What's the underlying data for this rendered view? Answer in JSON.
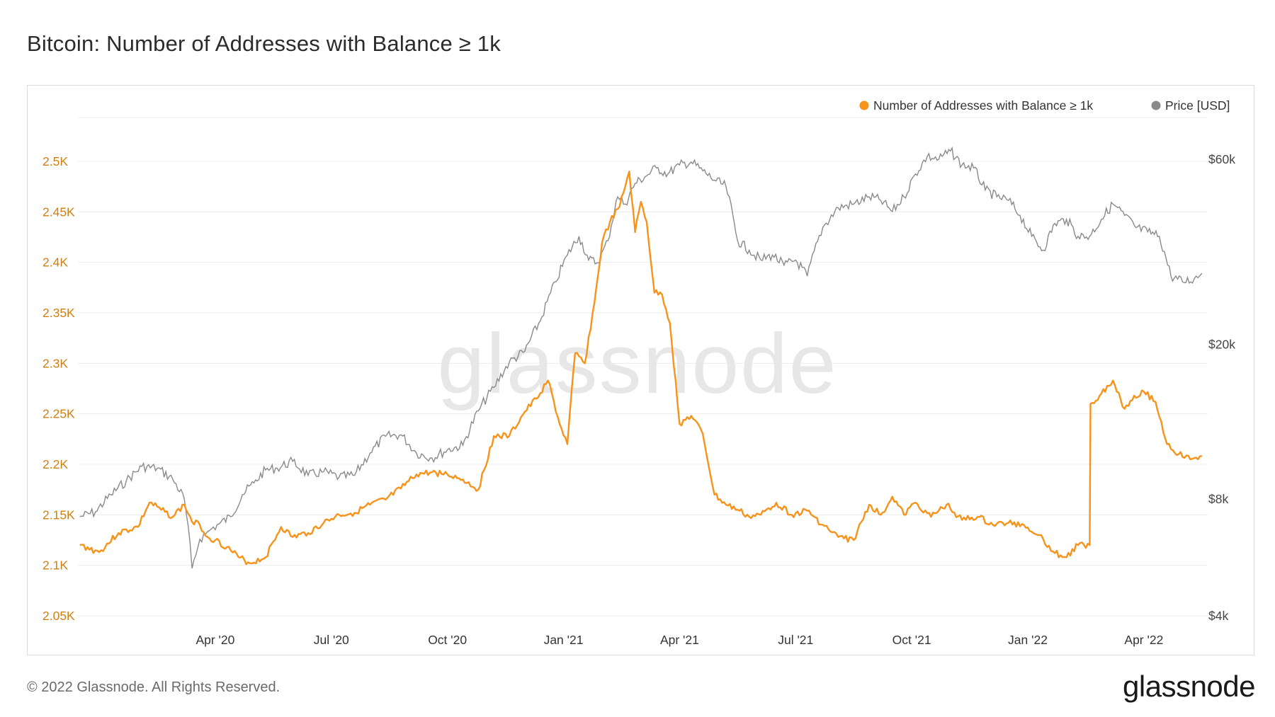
{
  "header": {
    "title": "Bitcoin: Number of Addresses with Balance ≥ 1k"
  },
  "footer": {
    "copyright": "© 2022 Glassnode. All Rights Reserved.",
    "logo": "glassnode"
  },
  "watermark": "glassnode",
  "colors": {
    "addresses": "#f7931a",
    "price": "#8a8a8a",
    "grid": "#ececec",
    "leftAxis": "#d17f12",
    "rightAxis": "#444444"
  },
  "chart_data": {
    "type": "line",
    "title": "Bitcoin: Number of Addresses with Balance ≥ 1k",
    "legend_position": "top-right",
    "x_tick_labels": [
      "Apr '20",
      "Jul '20",
      "Oct '20",
      "Jan '21",
      "Apr '21",
      "Jul '21",
      "Oct '21",
      "Jan '22",
      "Apr '22"
    ],
    "x_tick_months": [
      3,
      6,
      9,
      12,
      15,
      18,
      21,
      24,
      27
    ],
    "x_range_months": [
      -0.55,
      28.65
    ],
    "left_axis": {
      "label": "Number of Addresses with Balance ≥ 1k",
      "range": [
        2030,
        2545
      ],
      "ticks": [
        2050,
        2100,
        2150,
        2200,
        2250,
        2300,
        2350,
        2400,
        2450,
        2500
      ],
      "tick_labels": [
        "2.05K",
        "2.1K",
        "2.15K",
        "2.2K",
        "2.25K",
        "2.3K",
        "2.35K",
        "2.4K",
        "2.45K",
        "2.5K"
      ]
    },
    "right_axis": {
      "label": "Price [USD]",
      "scale": "log",
      "ticks": [
        4000,
        8000,
        20000,
        60000
      ],
      "tick_labels": [
        "$4k",
        "$8k",
        "$20k",
        "$60k"
      ]
    },
    "series": [
      {
        "name": "Number of Addresses with Balance ≥ 1k",
        "axis": "left",
        "x_months": [
          -0.5,
          0,
          0.5,
          1,
          1.3,
          1.6,
          1.9,
          2.2,
          2.4,
          2.6,
          2.8,
          3.0,
          3.3,
          3.6,
          3.9,
          4.3,
          4.7,
          5.0,
          5.4,
          5.8,
          6.2,
          6.6,
          7.0,
          7.4,
          7.8,
          8.2,
          8.6,
          9.0,
          9.4,
          9.8,
          10.2,
          10.6,
          11.0,
          11.3,
          11.6,
          11.9,
          12.1,
          12.3,
          12.55,
          12.8,
          13.0,
          13.2,
          13.45,
          13.7,
          13.85,
          14.0,
          14.15,
          14.35,
          14.55,
          14.75,
          15.0,
          15.3,
          15.6,
          15.9,
          16.2,
          16.5,
          16.8,
          17.1,
          17.5,
          17.9,
          18.3,
          18.7,
          19.1,
          19.5,
          19.9,
          20.2,
          20.5,
          20.8,
          21.1,
          21.5,
          21.9,
          22.3,
          22.7,
          23.1,
          23.5,
          23.9,
          24.3,
          24.7,
          25.0,
          25.3,
          25.6,
          25.62,
          25.9,
          26.2,
          26.5,
          26.75,
          27.0,
          27.3,
          27.6,
          27.9,
          28.2,
          28.5
        ],
        "values": [
          2120,
          2113,
          2132,
          2138,
          2162,
          2155,
          2148,
          2160,
          2143,
          2140,
          2128,
          2125,
          2118,
          2108,
          2102,
          2108,
          2138,
          2128,
          2132,
          2142,
          2150,
          2152,
          2160,
          2165,
          2176,
          2190,
          2192,
          2190,
          2185,
          2175,
          2228,
          2228,
          2252,
          2265,
          2283,
          2240,
          2220,
          2310,
          2300,
          2360,
          2420,
          2440,
          2455,
          2490,
          2430,
          2460,
          2440,
          2370,
          2368,
          2340,
          2240,
          2248,
          2230,
          2170,
          2160,
          2155,
          2148,
          2150,
          2162,
          2150,
          2154,
          2140,
          2128,
          2125,
          2160,
          2150,
          2168,
          2150,
          2162,
          2148,
          2160,
          2145,
          2148,
          2140,
          2142,
          2140,
          2130,
          2112,
          2108,
          2120,
          2120,
          2260,
          2270,
          2283,
          2255,
          2268,
          2272,
          2262,
          2220,
          2210,
          2205,
          2208
        ]
      },
      {
        "name": "Price [USD]",
        "axis": "right",
        "x_months": [
          -0.5,
          -0.1,
          0.3,
          0.7,
          1.1,
          1.5,
          1.9,
          2.2,
          2.4,
          2.6,
          2.75,
          2.9,
          3.1,
          3.4,
          3.7,
          4.0,
          4.3,
          4.6,
          5.0,
          5.4,
          5.8,
          6.2,
          6.6,
          7.0,
          7.4,
          7.8,
          8.2,
          8.6,
          9.0,
          9.4,
          9.8,
          10.2,
          10.6,
          11.0,
          11.4,
          11.8,
          12.1,
          12.4,
          12.65,
          12.9,
          13.15,
          13.4,
          13.6,
          13.85,
          14.1,
          14.4,
          14.7,
          15.0,
          15.3,
          15.6,
          15.9,
          16.2,
          16.5,
          16.8,
          17.1,
          17.4,
          17.7,
          18.0,
          18.3,
          18.7,
          19.1,
          19.5,
          19.9,
          20.2,
          20.5,
          20.8,
          21.1,
          21.4,
          21.7,
          22.0,
          22.3,
          22.6,
          22.9,
          23.2,
          23.5,
          23.8,
          24.1,
          24.4,
          24.7,
          25.0,
          25.3,
          25.6,
          25.9,
          26.2,
          26.5,
          26.8,
          27.1,
          27.4,
          27.7,
          28.0,
          28.3,
          28.5
        ],
        "values": [
          7200,
          7400,
          8200,
          8900,
          9700,
          9600,
          9000,
          8000,
          5300,
          6300,
          6500,
          6700,
          6900,
          7200,
          8200,
          8800,
          9500,
          9600,
          10000,
          9200,
          9400,
          9100,
          9200,
          10500,
          11600,
          11700,
          10500,
          10200,
          10700,
          11000,
          13500,
          15500,
          18000,
          19200,
          23000,
          29000,
          34000,
          38000,
          33000,
          32500,
          37000,
          48000,
          46000,
          52000,
          54000,
          57000,
          55000,
          58000,
          59000,
          56000,
          53000,
          51000,
          37000,
          35000,
          33000,
          34000,
          32000,
          33000,
          30000,
          40000,
          45000,
          46000,
          48000,
          47000,
          44000,
          48000,
          55000,
          61000,
          60000,
          63000,
          58000,
          57000,
          50000,
          48000,
          47000,
          43000,
          38000,
          35000,
          41000,
          42000,
          38000,
          38000,
          42000,
          46000,
          43000,
          40000,
          39000,
          38000,
          30000,
          29000,
          29500,
          30500
        ]
      }
    ]
  }
}
